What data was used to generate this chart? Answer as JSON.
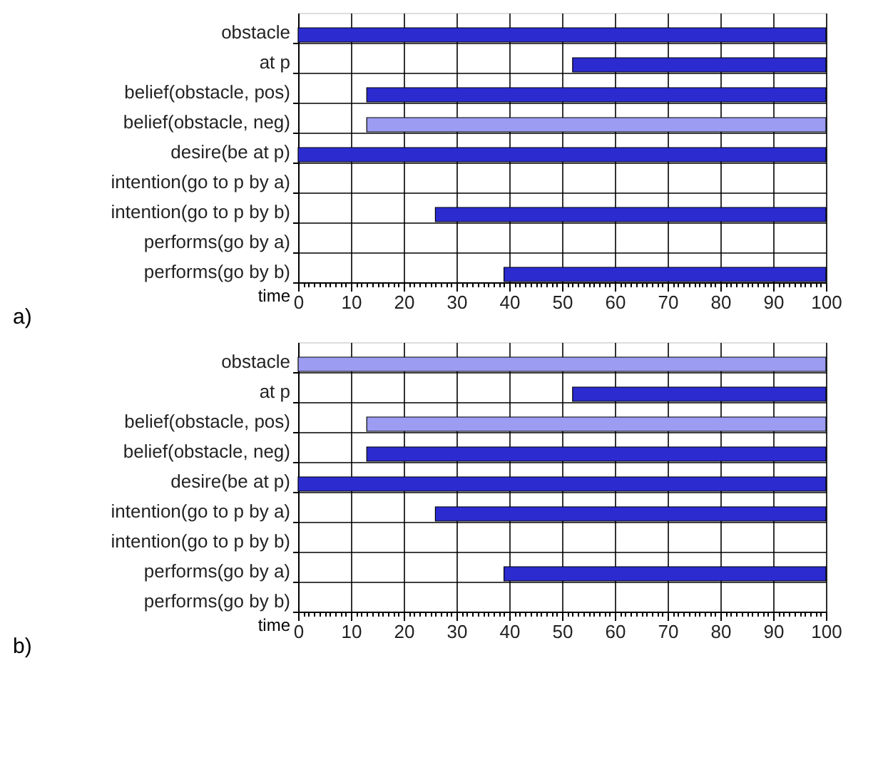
{
  "chart_data": [
    {
      "type": "bar",
      "orientation": "horizontal",
      "title": "a)",
      "xlabel": "time",
      "categories": [
        "obstacle",
        "at p",
        "belief(obstacle, pos)",
        "belief(obstacle, neg)",
        "desire(be at p)",
        "intention(go to p by a)",
        "intention(go to p by b)",
        "performs(go by a)",
        "performs(go by b)"
      ],
      "base": [
        0,
        52,
        13,
        13,
        0,
        null,
        26,
        null,
        39
      ],
      "values": [
        100,
        48,
        87,
        87,
        100,
        null,
        74,
        null,
        61
      ],
      "colors": [
        "#2b2bd0",
        "#2b2bd0",
        "#2b2bd0",
        "#9c9cf2",
        "#2b2bd0",
        "#2b2bd0",
        "#2b2bd0",
        "#2b2bd0",
        "#2b2bd0"
      ],
      "xlim": [
        0,
        100
      ],
      "xticks": [
        0,
        {
          "value": 1,
          "label": null
        },
        {
          "value": 2,
          "label": null
        },
        {
          "value": 3,
          "label": null
        },
        {
          "value": 4,
          "label": null
        },
        {
          "value": 5,
          "label": null
        },
        {
          "value": 6,
          "label": null
        },
        {
          "value": 7,
          "label": null
        },
        {
          "value": 8,
          "label": null
        },
        {
          "value": 9,
          "label": null
        },
        10,
        {
          "value": 11,
          "label": null
        },
        {
          "value": 12,
          "label": null
        },
        {
          "value": 13,
          "label": null
        },
        {
          "value": 14,
          "label": null
        },
        {
          "value": 15,
          "label": null
        },
        {
          "value": 16,
          "label": null
        },
        {
          "value": 17,
          "label": null
        },
        {
          "value": 18,
          "label": null
        },
        {
          "value": 19,
          "label": null
        },
        20,
        {
          "value": 21,
          "label": null
        },
        {
          "value": 22,
          "label": null
        },
        {
          "value": 23,
          "label": null
        },
        {
          "value": 24,
          "label": null
        },
        {
          "value": 25,
          "label": null
        },
        {
          "value": 26,
          "label": null
        },
        {
          "value": 27,
          "label": null
        },
        {
          "value": 28,
          "label": null
        },
        {
          "value": 29,
          "label": null
        },
        30,
        {
          "value": 31,
          "label": null
        },
        {
          "value": 32,
          "label": null
        },
        {
          "value": 33,
          "label": null
        },
        {
          "value": 34,
          "label": null
        },
        {
          "value": 35,
          "label": null
        },
        {
          "value": 36,
          "label": null
        },
        {
          "value": 37,
          "label": null
        },
        {
          "value": 38,
          "label": null
        },
        {
          "value": 39,
          "label": null
        },
        40,
        {
          "value": 41,
          "label": null
        },
        {
          "value": 42,
          "label": null
        },
        {
          "value": 43,
          "label": null
        },
        {
          "value": 44,
          "label": null
        },
        {
          "value": 45,
          "label": null
        },
        {
          "value": 46,
          "label": null
        },
        {
          "value": 47,
          "label": null
        },
        {
          "value": 48,
          "label": null
        },
        {
          "value": 49,
          "label": null
        },
        50,
        {
          "value": 51,
          "label": null
        },
        {
          "value": 52,
          "label": null
        },
        {
          "value": 53,
          "label": null
        },
        {
          "value": 54,
          "label": null
        },
        {
          "value": 55,
          "label": null
        },
        {
          "value": 56,
          "label": null
        },
        {
          "value": 57,
          "label": null
        },
        {
          "value": 58,
          "label": null
        },
        {
          "value": 59,
          "label": null
        },
        60,
        {
          "value": 61,
          "label": null
        },
        {
          "value": 62,
          "label": null
        },
        {
          "value": 63,
          "label": null
        },
        {
          "value": 64,
          "label": null
        },
        {
          "value": 65,
          "label": null
        },
        {
          "value": 66,
          "label": null
        },
        {
          "value": 67,
          "label": null
        },
        {
          "value": 68,
          "label": null
        },
        {
          "value": 69,
          "label": null
        },
        70,
        {
          "value": 71,
          "label": null
        },
        {
          "value": 72,
          "label": null
        },
        {
          "value": 73,
          "label": null
        },
        {
          "value": 74,
          "label": null
        },
        {
          "value": 75,
          "label": null
        },
        {
          "value": 76,
          "label": null
        },
        {
          "value": 77,
          "label": null
        },
        {
          "value": 78,
          "label": null
        },
        {
          "value": 79,
          "label": null
        },
        80,
        {
          "value": 81,
          "label": null
        },
        {
          "value": 82,
          "label": null
        },
        {
          "value": 83,
          "label": null
        },
        {
          "value": 84,
          "label": null
        },
        {
          "value": 85,
          "label": null
        },
        {
          "value": 86,
          "label": null
        },
        {
          "value": 87,
          "label": null
        },
        {
          "value": 88,
          "label": null
        },
        {
          "value": 89,
          "label": null
        },
        90,
        {
          "value": 91,
          "label": null
        },
        {
          "value": 92,
          "label": null
        },
        {
          "value": 93,
          "label": null
        },
        {
          "value": 94,
          "label": null
        },
        {
          "value": 95,
          "label": null
        },
        {
          "value": 96,
          "label": null
        },
        {
          "value": 97,
          "label": null
        },
        {
          "value": 98,
          "label": null
        },
        {
          "value": 99,
          "label": null
        },
        100
      ],
      "grid": true
    },
    {
      "type": "bar",
      "orientation": "horizontal",
      "title": "b)",
      "xlabel": "time",
      "categories": [
        "obstacle",
        "at p",
        "belief(obstacle, pos)",
        "belief(obstacle, neg)",
        "desire(be at p)",
        "intention(go to p by a)",
        "intention(go to p by b)",
        "performs(go by a)",
        "performs(go by b)"
      ],
      "base": [
        0,
        52,
        13,
        13,
        0,
        26,
        null,
        39,
        null
      ],
      "values": [
        100,
        48,
        87,
        87,
        100,
        74,
        null,
        61,
        null
      ],
      "colors": [
        "#9c9cf2",
        "#2b2bd0",
        "#9c9cf2",
        "#2b2bd0",
        "#2b2bd0",
        "#2b2bd0",
        "#2b2bd0",
        "#2b2bd0",
        "#2b2bd0"
      ],
      "xlim": [
        0,
        100
      ],
      "xticks": [
        0,
        {
          "value": 1,
          "label": null
        },
        {
          "value": 2,
          "label": null
        },
        {
          "value": 3,
          "label": null
        },
        {
          "value": 4,
          "label": null
        },
        {
          "value": 5,
          "label": null
        },
        {
          "value": 6,
          "label": null
        },
        {
          "value": 7,
          "label": null
        },
        {
          "value": 8,
          "label": null
        },
        {
          "value": 9,
          "label": null
        },
        10,
        {
          "value": 11,
          "label": null
        },
        {
          "value": 12,
          "label": null
        },
        {
          "value": 13,
          "label": null
        },
        {
          "value": 14,
          "label": null
        },
        {
          "value": 15,
          "label": null
        },
        {
          "value": 16,
          "label": null
        },
        {
          "value": 17,
          "label": null
        },
        {
          "value": 18,
          "label": null
        },
        {
          "value": 19,
          "label": null
        },
        20,
        {
          "value": 21,
          "label": null
        },
        {
          "value": 22,
          "label": null
        },
        {
          "value": 23,
          "label": null
        },
        {
          "value": 24,
          "label": null
        },
        {
          "value": 25,
          "label": null
        },
        {
          "value": 26,
          "label": null
        },
        {
          "value": 27,
          "label": null
        },
        {
          "value": 28,
          "label": null
        },
        {
          "value": 29,
          "label": null
        },
        30,
        {
          "value": 31,
          "label": null
        },
        {
          "value": 32,
          "label": null
        },
        {
          "value": 33,
          "label": null
        },
        {
          "value": 34,
          "label": null
        },
        {
          "value": 35,
          "label": null
        },
        {
          "value": 36,
          "label": null
        },
        {
          "value": 37,
          "label": null
        },
        {
          "value": 38,
          "label": null
        },
        {
          "value": 39,
          "label": null
        },
        40,
        {
          "value": 41,
          "label": null
        },
        {
          "value": 42,
          "label": null
        },
        {
          "value": 43,
          "label": null
        },
        {
          "value": 44,
          "label": null
        },
        {
          "value": 45,
          "label": null
        },
        {
          "value": 46,
          "label": null
        },
        {
          "value": 47,
          "label": null
        },
        {
          "value": 48,
          "label": null
        },
        {
          "value": 49,
          "label": null
        },
        50,
        {
          "value": 51,
          "label": null
        },
        {
          "value": 52,
          "label": null
        },
        {
          "value": 53,
          "label": null
        },
        {
          "value": 54,
          "label": null
        },
        {
          "value": 55,
          "label": null
        },
        {
          "value": 56,
          "label": null
        },
        {
          "value": 57,
          "label": null
        },
        {
          "value": 58,
          "label": null
        },
        {
          "value": 59,
          "label": null
        },
        60,
        {
          "value": 61,
          "label": null
        },
        {
          "value": 62,
          "label": null
        },
        {
          "value": 63,
          "label": null
        },
        {
          "value": 64,
          "label": null
        },
        {
          "value": 65,
          "label": null
        },
        {
          "value": 66,
          "label": null
        },
        {
          "value": 67,
          "label": null
        },
        {
          "value": 68,
          "label": null
        },
        {
          "value": 69,
          "label": null
        },
        70,
        {
          "value": 71,
          "label": null
        },
        {
          "value": 72,
          "label": null
        },
        {
          "value": 73,
          "label": null
        },
        {
          "value": 74,
          "label": null
        },
        {
          "value": 75,
          "label": null
        },
        {
          "value": 76,
          "label": null
        },
        {
          "value": 77,
          "label": null
        },
        {
          "value": 78,
          "label": null
        },
        {
          "value": 79,
          "label": null
        },
        80,
        {
          "value": 81,
          "label": null
        },
        {
          "value": 82,
          "label": null
        },
        {
          "value": 83,
          "label": null
        },
        {
          "value": 84,
          "label": null
        },
        {
          "value": 85,
          "label": null
        },
        {
          "value": 86,
          "label": null
        },
        {
          "value": 87,
          "label": null
        },
        {
          "value": 88,
          "label": null
        },
        {
          "value": 89,
          "label": null
        },
        90,
        {
          "value": 91,
          "label": null
        },
        {
          "value": 92,
          "label": null
        },
        {
          "value": 93,
          "label": null
        },
        {
          "value": 94,
          "label": null
        },
        {
          "value": 95,
          "label": null
        },
        {
          "value": 96,
          "label": null
        },
        {
          "value": 97,
          "label": null
        },
        {
          "value": 98,
          "label": null
        },
        {
          "value": 99,
          "label": null
        },
        100
      ],
      "grid": true
    }
  ]
}
